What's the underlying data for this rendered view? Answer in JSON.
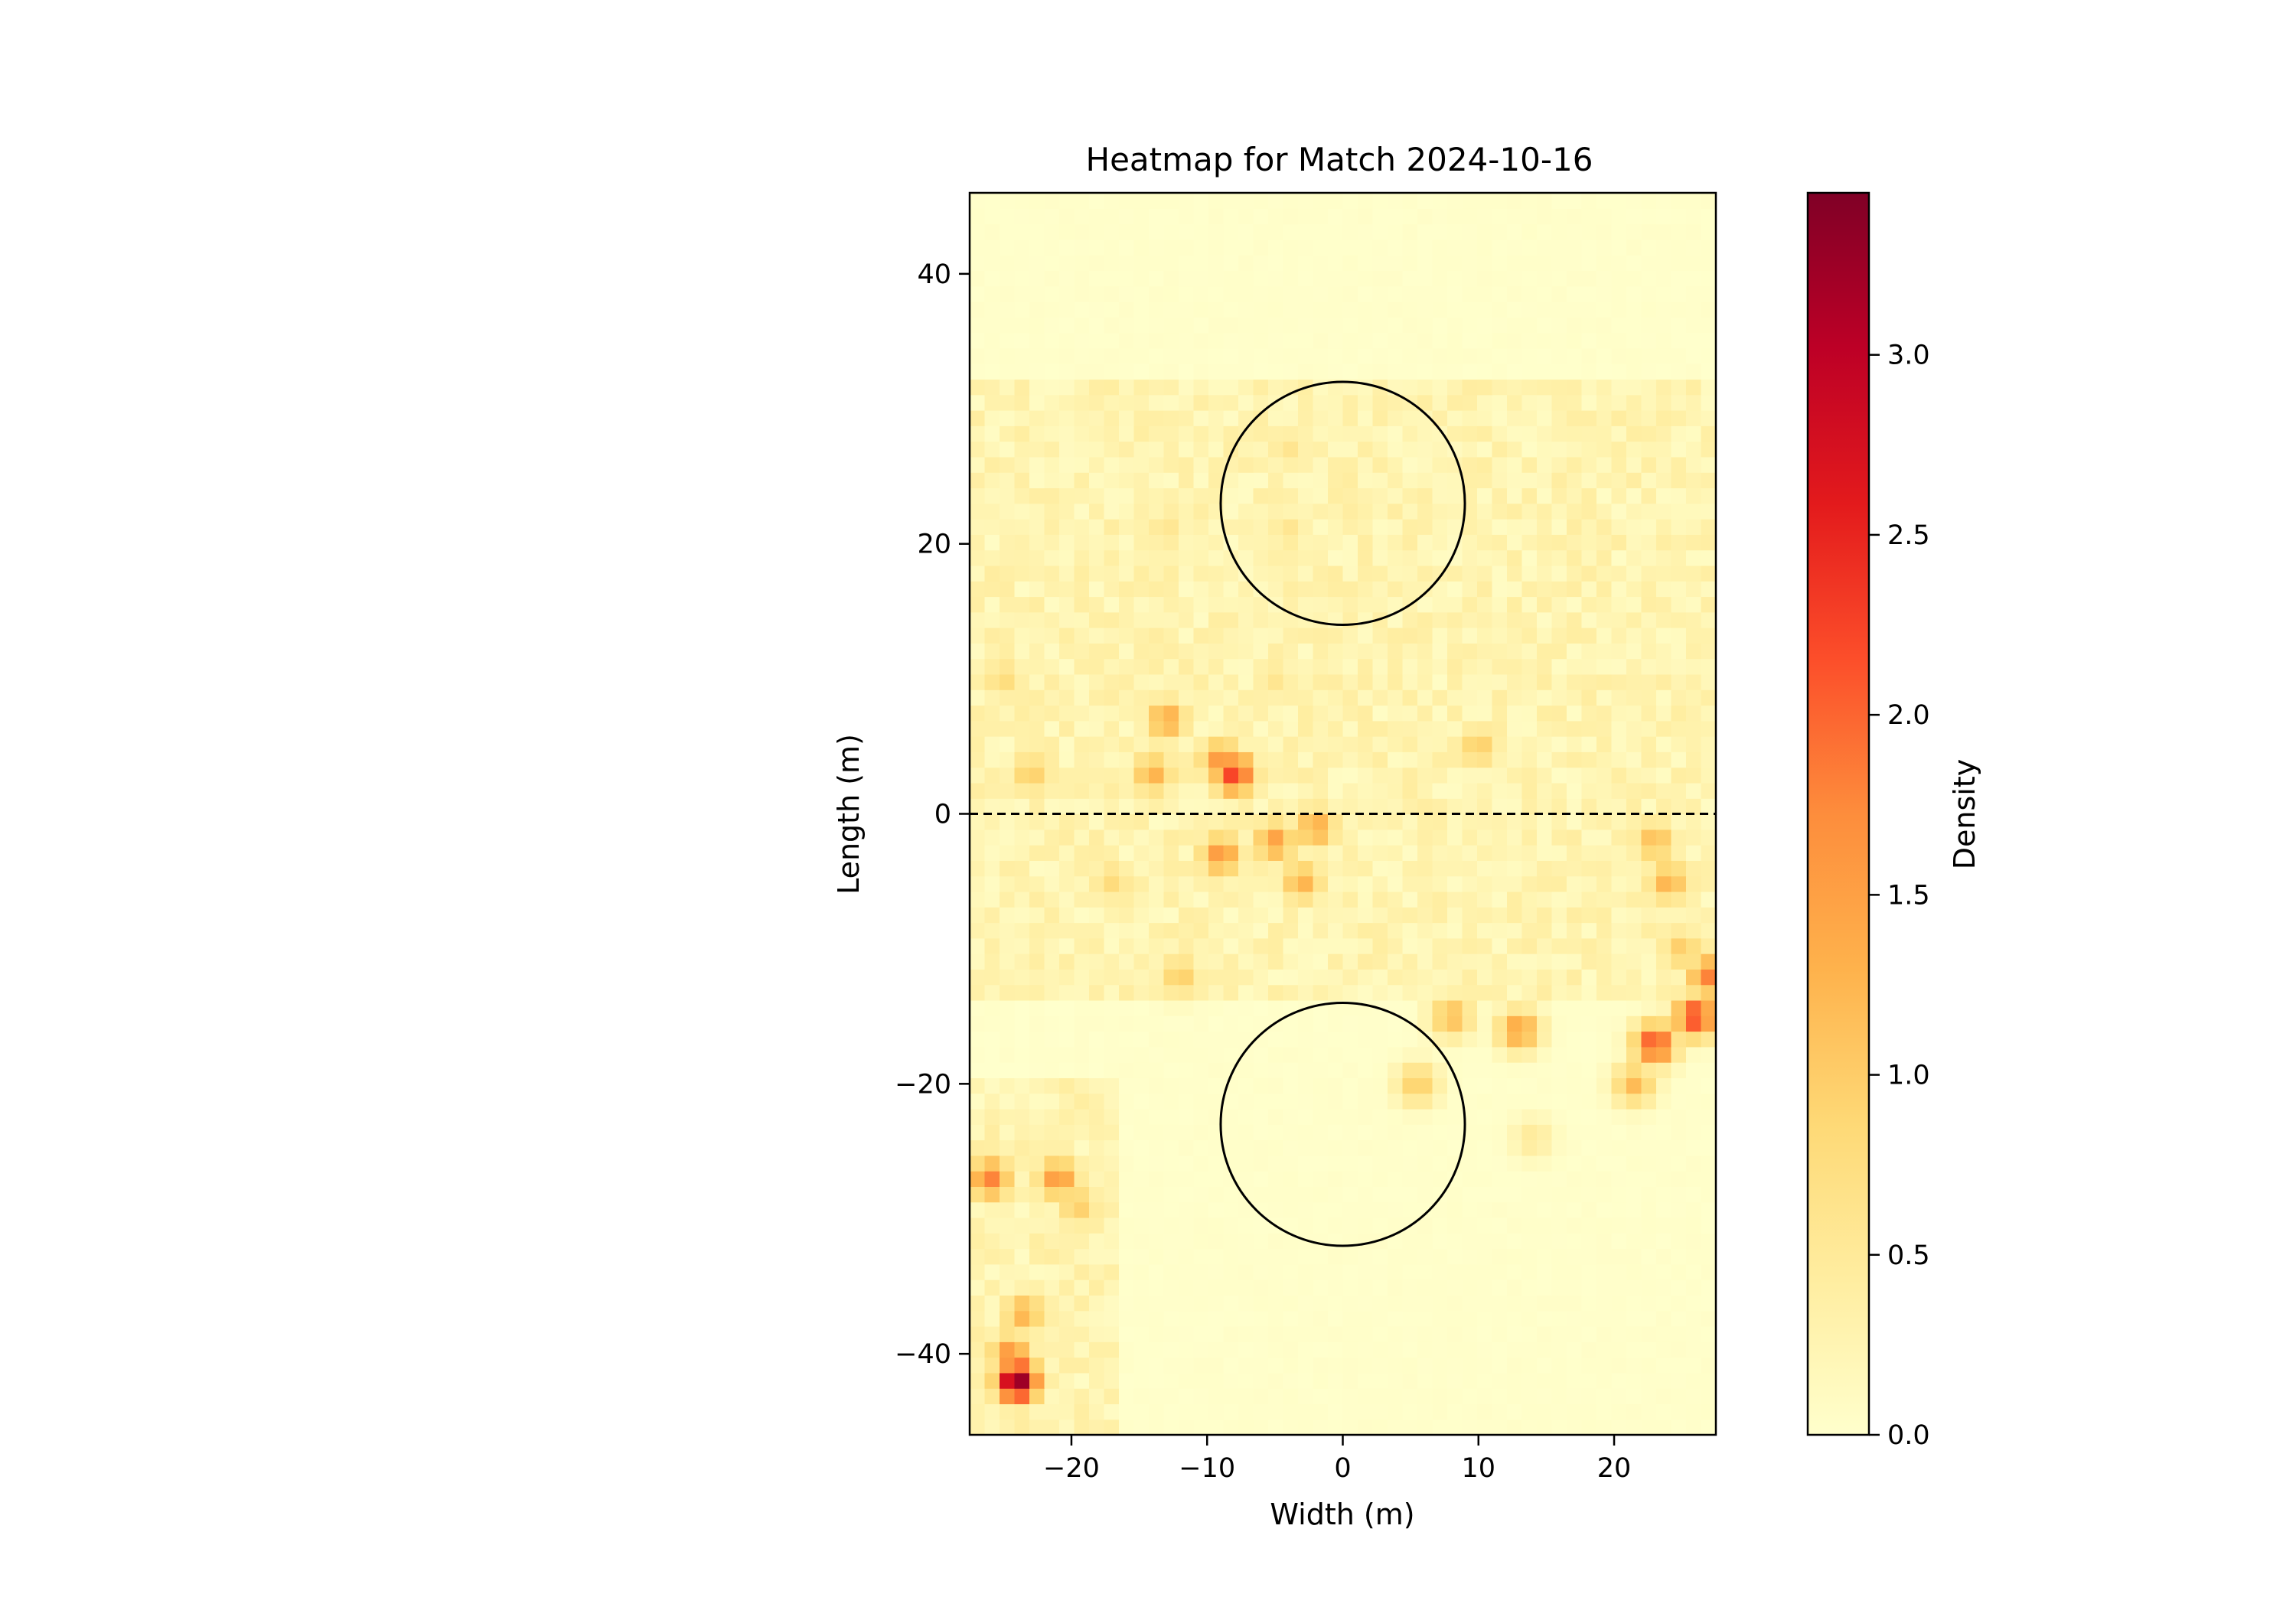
{
  "chart_data": {
    "type": "heatmap",
    "title": "Heatmap for Match 2024-10-16",
    "xlabel": "Width (m)",
    "ylabel": "Length (m)",
    "xlim": [
      -27.5,
      27.5
    ],
    "ylim": [
      -46,
      46
    ],
    "x_ticks": [
      -20,
      -10,
      0,
      10,
      20
    ],
    "x_tick_labels": [
      "−20",
      "−10",
      "0",
      "10",
      "20"
    ],
    "y_ticks": [
      -40,
      -20,
      0,
      20,
      40
    ],
    "y_tick_labels": [
      "−40",
      "−20",
      "0",
      "20",
      "40"
    ],
    "grid": false,
    "colormap": "YlOrRd",
    "colormap_stops": [
      "#ffffcc",
      "#ffeda0",
      "#fed976",
      "#feb24c",
      "#fd8d3c",
      "#fc4e2a",
      "#e31a1c",
      "#bd0026",
      "#800026"
    ],
    "colorbar": {
      "label": "Density",
      "range": [
        0,
        3.45
      ],
      "ticks": [
        0.0,
        0.5,
        1.0,
        1.5,
        2.0,
        2.5,
        3.0
      ],
      "tick_labels": [
        "0.0",
        "0.5",
        "1.0",
        "1.5",
        "2.0",
        "2.5",
        "3.0"
      ]
    },
    "circles": [
      {
        "cx": 0,
        "cy": 23,
        "r": 9
      },
      {
        "cx": 0,
        "cy": -23,
        "r": 9
      }
    ],
    "halfway_line": {
      "y": 0,
      "style": "dashed"
    },
    "hotspots": [
      {
        "x": -24,
        "y": -42,
        "value": 3.4
      },
      {
        "x": -24.5,
        "y": -40,
        "value": 1.6
      },
      {
        "x": -23.5,
        "y": -37,
        "value": 1.3
      },
      {
        "x": -26,
        "y": -27,
        "value": 1.8
      },
      {
        "x": -21,
        "y": -27,
        "value": 1.6
      },
      {
        "x": -19.5,
        "y": -29,
        "value": 1.0
      },
      {
        "x": -8,
        "y": 3,
        "value": 2.3
      },
      {
        "x": -9,
        "y": 4,
        "value": 1.6
      },
      {
        "x": -13,
        "y": 7,
        "value": 1.4
      },
      {
        "x": -14,
        "y": 3,
        "value": 1.3
      },
      {
        "x": -9,
        "y": -3,
        "value": 1.6
      },
      {
        "x": -5,
        "y": -2,
        "value": 1.5
      },
      {
        "x": -2,
        "y": -1,
        "value": 1.4
      },
      {
        "x": -3,
        "y": -5,
        "value": 1.3
      },
      {
        "x": -23,
        "y": 3,
        "value": 1.0
      },
      {
        "x": -25,
        "y": 10,
        "value": 0.8
      },
      {
        "x": -17,
        "y": -5,
        "value": 0.8
      },
      {
        "x": 10,
        "y": 5,
        "value": 1.0
      },
      {
        "x": 23,
        "y": -2,
        "value": 1.2
      },
      {
        "x": 24,
        "y": -5,
        "value": 1.3
      },
      {
        "x": 25,
        "y": -10,
        "value": 1.0
      },
      {
        "x": 13,
        "y": -16,
        "value": 1.5
      },
      {
        "x": 8,
        "y": -15,
        "value": 1.2
      },
      {
        "x": 23,
        "y": -17,
        "value": 2.2
      },
      {
        "x": 26,
        "y": -15,
        "value": 2.3
      },
      {
        "x": 27,
        "y": -12,
        "value": 1.8
      },
      {
        "x": 21.5,
        "y": -20,
        "value": 1.2
      },
      {
        "x": 5.5,
        "y": -20,
        "value": 1.0
      },
      {
        "x": -12,
        "y": -12,
        "value": 1.0
      },
      {
        "x": -4,
        "y": 27,
        "value": 0.6
      },
      {
        "x": -4,
        "y": 21,
        "value": 0.6
      },
      {
        "x": -13,
        "y": 21,
        "value": 0.6
      },
      {
        "x": -5,
        "y": 10,
        "value": 0.6
      },
      {
        "x": 14,
        "y": -24,
        "value": 0.5
      }
    ]
  }
}
